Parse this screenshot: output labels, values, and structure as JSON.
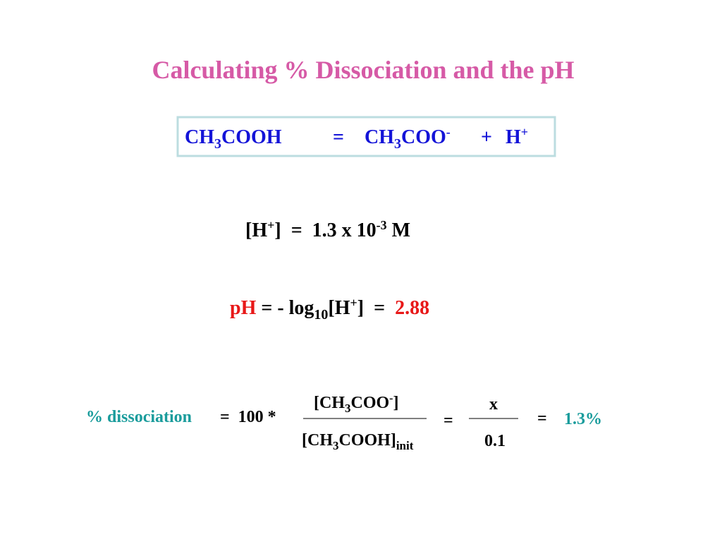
{
  "title": "Calculating % Dissociation and the pH",
  "equation": {
    "reactant": [
      "CH",
      "3",
      "COOH"
    ],
    "equals": "=",
    "product1": [
      "CH",
      "3",
      "COO",
      "-"
    ],
    "plus": "+",
    "product2": [
      "H",
      "+"
    ]
  },
  "h_concentration": [
    "[H",
    "+",
    "]  =  1.3 x 10",
    "-3",
    " M"
  ],
  "ph": {
    "label": "pH",
    "formula": [
      " = - log",
      "10",
      "[H",
      "+",
      "]  =  "
    ],
    "value": "2.88"
  },
  "dissociation": {
    "label": "% dissociation",
    "lhs": "=  100 *",
    "numerator": [
      "[CH",
      "3",
      "COO",
      "-",
      "]"
    ],
    "denominator": [
      "[CH",
      "3",
      "COOH]",
      "init"
    ],
    "equals1": "=",
    "x_numerator": "x",
    "x_denominator": "0.1",
    "equals2": "=",
    "result": "1.3%"
  }
}
